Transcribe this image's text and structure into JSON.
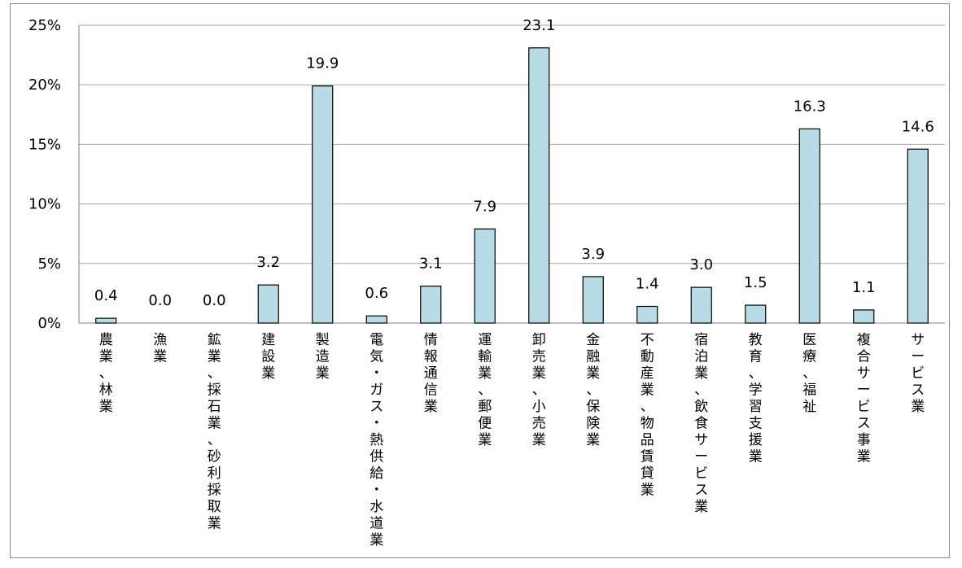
{
  "chart_data": {
    "type": "bar",
    "title": "",
    "xlabel": "",
    "ylabel": "",
    "ylim": [
      0,
      25
    ],
    "yticks": [
      "0%",
      "5%",
      "10%",
      "15%",
      "20%",
      "25%"
    ],
    "grid": true,
    "categories": [
      "農業、林業",
      "漁業",
      "鉱業、採石業、砂利採取業",
      "建設業",
      "製造業",
      "電気・ガス・熱供給・水道業",
      "情報通信業",
      "運輸業、郵便業",
      "卸売業、小売業",
      "金融業、保険業",
      "不動産業、物品賃貸業",
      "宿泊業、飲食サービス業",
      "教育、学習支援業",
      "医療、福祉",
      "複合サービス事業",
      "サービス業"
    ],
    "values": [
      0.4,
      0.0,
      0.0,
      3.2,
      19.9,
      0.6,
      3.1,
      7.9,
      23.1,
      3.9,
      1.4,
      3.0,
      1.5,
      16.3,
      1.1,
      14.6
    ],
    "data_labels": [
      "0.4",
      "0.0",
      "0.0",
      "3.2",
      "19.9",
      "0.6",
      "3.1",
      "7.9",
      "23.1",
      "3.9",
      "1.4",
      "3.0",
      "1.5",
      "16.3",
      "1.1",
      "14.6"
    ],
    "bar_color": "#b8dce6",
    "bar_stroke": "#000000",
    "grid_color": "#a6a6a6"
  }
}
